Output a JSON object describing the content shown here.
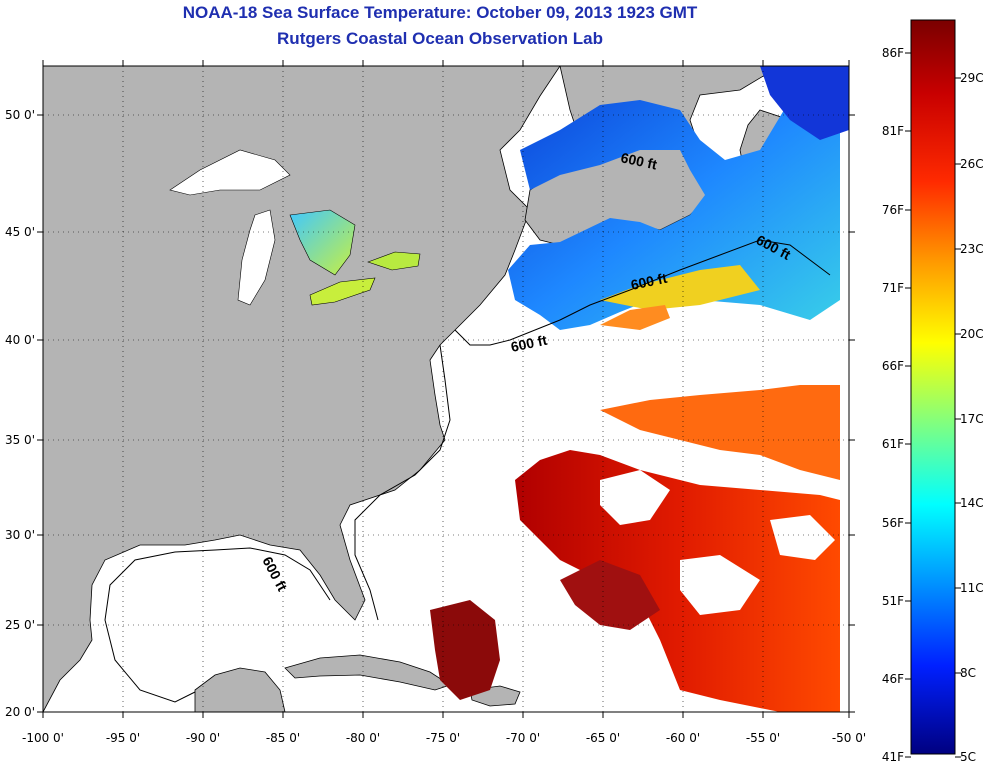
{
  "title": "NOAA-18 Sea Surface Temperature:  October 09, 2013 1923 GMT",
  "subtitle": "Rutgers Coastal Ocean Observation Lab",
  "lon_ticks": [
    "-100 0'",
    "-95 0'",
    "-90 0'",
    "-85 0'",
    "-80 0'",
    "-75 0'",
    "-70 0'",
    "-65 0'",
    "-60 0'",
    "-55 0'",
    "-50 0'"
  ],
  "lat_ticks": [
    "20 0'",
    "25 0'",
    "30 0'",
    "35 0'",
    "40 0'",
    "45 0'",
    "50 0'"
  ],
  "isobath_labels": [
    "600 ft",
    "600 ft",
    "600 ft",
    "600 ft",
    "600 ft"
  ],
  "colorbar": {
    "fahrenheit": [
      "86F",
      "81F",
      "76F",
      "71F",
      "66F",
      "61F",
      "56F",
      "51F",
      "46F",
      "41F"
    ],
    "celsius": [
      "29C",
      "26C",
      "23C",
      "20C",
      "17C",
      "14C",
      "11C",
      "8C",
      "5C"
    ],
    "colors": [
      "#8b0000",
      "#ff0000",
      "#ff8c00",
      "#ffff00",
      "#7fff7f",
      "#00ffff",
      "#0080ff",
      "#0000ff",
      "#00008b"
    ]
  },
  "colors": {
    "land": "#b4b4b4",
    "ocean_no_data": "#ffffff",
    "title": "#1f2fb0"
  }
}
